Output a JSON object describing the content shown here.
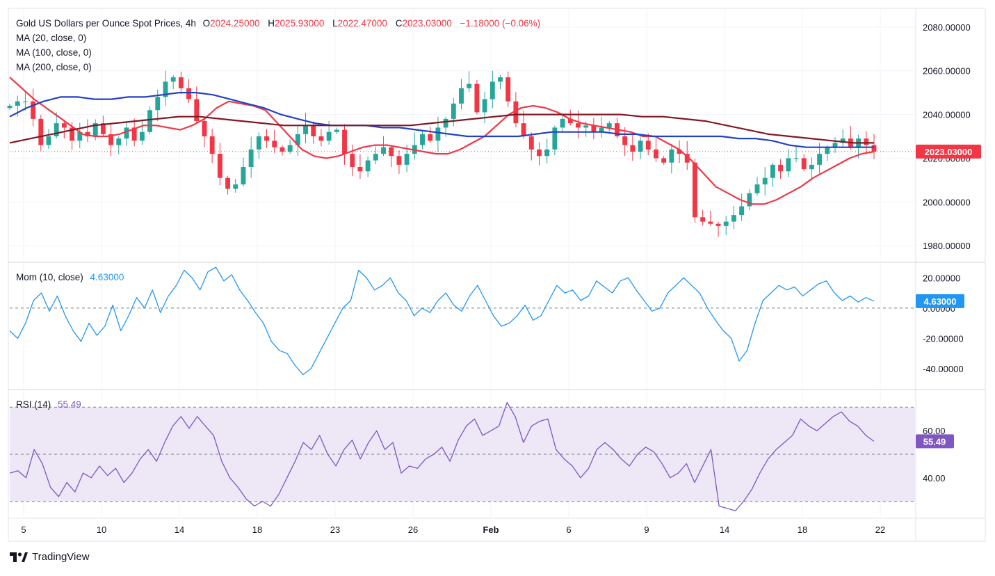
{
  "header": {
    "symbol": "Gold US Dollars per Ounce Spot Prices, 4h",
    "o_label": "O",
    "o": "2024.25000",
    "h_label": "H",
    "h": "2025.93000",
    "l_label": "L",
    "l": "2022.47000",
    "c_label": "C",
    "c": "2023.03000",
    "change": "−1.18000 (−0.06%)"
  },
  "legend": {
    "ma20": "MA (20, close, 0)",
    "ma100": "MA (100, close, 0)",
    "ma200": "MA (200, close, 0)",
    "mom_label": "Mom (10, close)",
    "mom_value": "4.63000",
    "rsi_label": "RSI (14)",
    "rsi_value": "55.49"
  },
  "colors": {
    "up": "#26a69a",
    "down": "#f23645",
    "ma20": "#f23645",
    "ma100": "#2241c8",
    "ma200": "#801922",
    "mom": "#2196f3",
    "rsi": "#7e57c2",
    "rsi_band": "#ede7f6",
    "text": "#131722",
    "grid": "#f0f3fa"
  },
  "brand": {
    "name": "TradingView",
    "icon": "tradingview-logo-icon"
  },
  "chart_data": [
    {
      "type": "candlestick",
      "title": "Gold US Dollars per Ounce Spot Prices, 4h",
      "x_ticks": [
        "5",
        "10",
        "14",
        "18",
        "23",
        "26",
        "Feb",
        "6",
        "9",
        "14",
        "18",
        "22"
      ],
      "y_ticks": [
        "2080.00000",
        "2060.00000",
        "2040.00000",
        "2020.00000",
        "2000.00000",
        "1980.00000"
      ],
      "ylim": [
        1974,
        2086
      ],
      "last_price_label": "2023.03000",
      "close_path": [
        2044,
        2046,
        2046,
        2038,
        2026,
        2030,
        2036,
        2034,
        2028,
        2032,
        2030,
        2036,
        2031,
        2026,
        2029,
        2034,
        2028,
        2032,
        2042,
        2048,
        2055,
        2057,
        2052,
        2047,
        2037,
        2030,
        2022,
        2011,
        2006,
        2008,
        2016,
        2024,
        2030,
        2028,
        2025,
        2023,
        2026,
        2031,
        2035,
        2030,
        2028,
        2032,
        2033,
        2022,
        2016,
        2014,
        2019,
        2022,
        2025,
        2021,
        2017,
        2022,
        2026,
        2031,
        2028,
        2034,
        2038,
        2045,
        2052,
        2054,
        2041,
        2047,
        2055,
        2057,
        2046,
        2036,
        2030,
        2024,
        2021,
        2024,
        2034,
        2038,
        2036,
        2034,
        2035,
        2032,
        2034,
        2036,
        2030,
        2026,
        2023,
        2028,
        2024,
        2020,
        2018,
        2024,
        2022,
        2018,
        1993,
        1991,
        1990,
        1989,
        1991,
        1994,
        1998,
        2004,
        2008,
        2011,
        2017,
        2014,
        2020,
        2020,
        2015,
        2017,
        2022,
        2025,
        2027,
        2029,
        2025,
        2029,
        2026,
        2023
      ],
      "series": [
        {
          "name": "MA (20, close, 0)",
          "values": [
            2057,
            2052,
            2047,
            2043,
            2039,
            2035,
            2031,
            2030,
            2030,
            2031,
            2033,
            2035,
            2035,
            2034,
            2033,
            2035,
            2038,
            2043,
            2046,
            2045,
            2044,
            2042,
            2036,
            2030,
            2024,
            2021,
            2020,
            2021,
            2023,
            2025,
            2026,
            2026,
            2025,
            2024,
            2023,
            2022,
            2022,
            2024,
            2027,
            2030,
            2035,
            2040,
            2043,
            2044,
            2043,
            2041,
            2038,
            2036,
            2035,
            2034,
            2033,
            2032,
            2030,
            2030,
            2027,
            2024,
            2019,
            2013,
            2007,
            2004,
            2001,
            1999,
            1999,
            2001,
            2004,
            2007,
            2011,
            2014,
            2017,
            2020,
            2022,
            2023
          ]
        },
        {
          "name": "MA (100, close, 0)",
          "values": [
            2039,
            2043,
            2046,
            2048,
            2048,
            2047,
            2047,
            2048,
            2048,
            2049,
            2050,
            2050,
            2049,
            2047,
            2045,
            2043,
            2040,
            2038,
            2036,
            2035,
            2035,
            2035,
            2034,
            2034,
            2033,
            2032,
            2031,
            2030,
            2030,
            2030,
            2030,
            2031,
            2032,
            2032,
            2032,
            2032,
            2031,
            2031,
            2030,
            2030,
            2030,
            2030,
            2030,
            2029,
            2029,
            2028,
            2026,
            2025,
            2025,
            2025,
            2025,
            2025
          ]
        },
        {
          "name": "MA (200, close, 0)",
          "values": [
            2027,
            2029,
            2031,
            2033,
            2035,
            2036,
            2037,
            2038,
            2039,
            2039,
            2038,
            2037,
            2036,
            2035,
            2035,
            2035,
            2035,
            2035,
            2035,
            2035,
            2036,
            2037,
            2038,
            2039,
            2040,
            2040,
            2040,
            2040,
            2040,
            2040,
            2039,
            2039,
            2038,
            2037,
            2035,
            2033,
            2031,
            2030,
            2029,
            2028,
            2027,
            2027
          ]
        }
      ]
    },
    {
      "type": "line",
      "title": "Mom (10, close)",
      "y_ticks": [
        "20.00000",
        "0.00000",
        "-20.00000",
        "-40.00000"
      ],
      "ylim": [
        -52,
        28
      ],
      "zero_line": 0,
      "last_value_label": "4.63000",
      "values": [
        -15,
        -20,
        -10,
        5,
        10,
        -2,
        8,
        -5,
        -15,
        -22,
        -10,
        -18,
        -12,
        2,
        -15,
        -5,
        7,
        0,
        12,
        -3,
        8,
        15,
        25,
        20,
        12,
        24,
        27,
        18,
        22,
        12,
        5,
        -3,
        -10,
        -22,
        -28,
        -30,
        -38,
        -44,
        -40,
        -30,
        -20,
        -10,
        0,
        5,
        25,
        20,
        12,
        15,
        20,
        10,
        5,
        -5,
        0,
        -3,
        5,
        10,
        2,
        -2,
        8,
        15,
        5,
        -5,
        -12,
        -10,
        -5,
        2,
        -8,
        -5,
        5,
        15,
        10,
        12,
        5,
        8,
        18,
        14,
        10,
        18,
        20,
        12,
        5,
        -2,
        0,
        10,
        15,
        20,
        15,
        10,
        0,
        -8,
        -15,
        -20,
        -35,
        -28,
        -10,
        5,
        10,
        15,
        12,
        14,
        8,
        12,
        16,
        18,
        10,
        5,
        8,
        4,
        7,
        4.63
      ]
    },
    {
      "type": "line",
      "title": "RSI (14)",
      "y_ticks": [
        "60.00",
        "40.00"
      ],
      "ylim": [
        24,
        76
      ],
      "band": [
        30,
        70
      ],
      "mid_line": 50,
      "last_value_label": "55.49",
      "values": [
        42,
        43,
        40,
        52,
        46,
        36,
        32,
        38,
        34,
        42,
        40,
        45,
        41,
        44,
        38,
        42,
        48,
        52,
        47,
        55,
        62,
        66,
        61,
        66,
        62,
        58,
        47,
        40,
        36,
        31,
        28,
        30,
        28,
        33,
        40,
        47,
        55,
        52,
        58,
        50,
        45,
        52,
        56,
        48,
        55,
        60,
        52,
        55,
        42,
        45,
        44,
        48,
        50,
        53,
        47,
        56,
        62,
        65,
        58,
        60,
        62,
        72,
        66,
        55,
        62,
        64,
        65,
        52,
        48,
        45,
        40,
        44,
        52,
        55,
        52,
        48,
        45,
        50,
        53,
        51,
        46,
        40,
        42,
        46,
        38,
        45,
        52,
        28,
        27,
        26,
        30,
        35,
        42,
        48,
        52,
        55,
        58,
        65,
        62,
        60,
        63,
        66,
        68,
        64,
        62,
        58,
        55.49
      ]
    }
  ]
}
